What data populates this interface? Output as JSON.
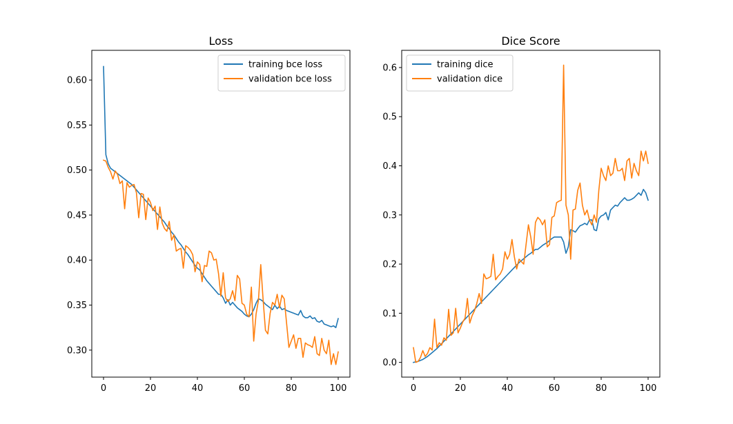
{
  "chart_data": [
    {
      "type": "line",
      "title": "Loss",
      "xlabel": "",
      "ylabel": "",
      "xlim": [
        -5,
        105
      ],
      "ylim": [
        0.27,
        0.633
      ],
      "xticks": [
        0,
        20,
        40,
        60,
        80,
        100
      ],
      "yticks": [
        0.3,
        0.35,
        0.4,
        0.45,
        0.5,
        0.55,
        0.6
      ],
      "ytick_labels": [
        "0.30",
        "0.35",
        "0.40",
        "0.45",
        "0.50",
        "0.55",
        "0.60"
      ],
      "legend": "top-right",
      "grid": false,
      "series": [
        {
          "name": "training bce loss",
          "color": "#1f77b4",
          "x": [
            0,
            1,
            2,
            3,
            4,
            5,
            6,
            7,
            8,
            9,
            10,
            11,
            12,
            13,
            14,
            15,
            16,
            17,
            18,
            19,
            20,
            21,
            22,
            23,
            24,
            25,
            26,
            27,
            28,
            29,
            30,
            31,
            32,
            33,
            34,
            35,
            36,
            37,
            38,
            39,
            40,
            41,
            42,
            43,
            44,
            45,
            46,
            47,
            48,
            49,
            50,
            51,
            52,
            53,
            54,
            55,
            56,
            57,
            58,
            59,
            60,
            61,
            62,
            63,
            64,
            65,
            66,
            67,
            68,
            69,
            70,
            71,
            72,
            73,
            74,
            75,
            76,
            77,
            78,
            79,
            80,
            81,
            82,
            83,
            84,
            85,
            86,
            87,
            88,
            89,
            90,
            91,
            92,
            93,
            94,
            95,
            96,
            97,
            98,
            99,
            100
          ],
          "y": [
            0.615,
            0.517,
            0.507,
            0.502,
            0.5,
            0.498,
            0.496,
            0.494,
            0.492,
            0.49,
            0.488,
            0.486,
            0.484,
            0.481,
            0.478,
            0.475,
            0.472,
            0.469,
            0.466,
            0.463,
            0.46,
            0.457,
            0.454,
            0.451,
            0.448,
            0.445,
            0.442,
            0.438,
            0.435,
            0.431,
            0.428,
            0.424,
            0.42,
            0.417,
            0.413,
            0.409,
            0.406,
            0.402,
            0.398,
            0.394,
            0.391,
            0.389,
            0.385,
            0.381,
            0.377,
            0.374,
            0.371,
            0.368,
            0.365,
            0.362,
            0.362,
            0.358,
            0.352,
            0.356,
            0.35,
            0.353,
            0.35,
            0.347,
            0.345,
            0.343,
            0.34,
            0.338,
            0.337,
            0.34,
            0.345,
            0.352,
            0.357,
            0.356,
            0.354,
            0.351,
            0.349,
            0.347,
            0.345,
            0.35,
            0.346,
            0.349,
            0.345,
            0.346,
            0.344,
            0.343,
            0.342,
            0.341,
            0.34,
            0.339,
            0.344,
            0.338,
            0.336,
            0.336,
            0.338,
            0.335,
            0.336,
            0.332,
            0.331,
            0.333,
            0.329,
            0.328,
            0.327,
            0.326,
            0.327,
            0.325,
            0.335
          ]
        },
        {
          "name": "validation bce loss",
          "color": "#ff7f0e",
          "x": [
            0,
            1,
            2,
            3,
            4,
            5,
            6,
            7,
            8,
            9,
            10,
            11,
            12,
            13,
            14,
            15,
            16,
            17,
            18,
            19,
            20,
            21,
            22,
            23,
            24,
            25,
            26,
            27,
            28,
            29,
            30,
            31,
            32,
            33,
            34,
            35,
            36,
            37,
            38,
            39,
            40,
            41,
            42,
            43,
            44,
            45,
            46,
            47,
            48,
            49,
            50,
            51,
            52,
            53,
            54,
            55,
            56,
            57,
            58,
            59,
            60,
            61,
            62,
            63,
            64,
            65,
            66,
            67,
            68,
            69,
            70,
            71,
            72,
            73,
            74,
            75,
            76,
            77,
            78,
            79,
            80,
            81,
            82,
            83,
            84,
            85,
            86,
            87,
            88,
            89,
            90,
            91,
            92,
            93,
            94,
            95,
            96,
            97,
            98,
            99,
            100
          ],
          "y": [
            0.511,
            0.51,
            0.503,
            0.498,
            0.49,
            0.499,
            0.495,
            0.485,
            0.488,
            0.457,
            0.486,
            0.481,
            0.483,
            0.484,
            0.475,
            0.447,
            0.474,
            0.473,
            0.445,
            0.469,
            0.464,
            0.455,
            0.46,
            0.434,
            0.459,
            0.441,
            0.435,
            0.432,
            0.443,
            0.422,
            0.428,
            0.41,
            0.412,
            0.413,
            0.391,
            0.416,
            0.414,
            0.411,
            0.406,
            0.387,
            0.398,
            0.395,
            0.376,
            0.394,
            0.393,
            0.41,
            0.408,
            0.4,
            0.401,
            0.385,
            0.36,
            0.386,
            0.358,
            0.354,
            0.357,
            0.366,
            0.355,
            0.383,
            0.379,
            0.352,
            0.35,
            0.34,
            0.337,
            0.37,
            0.31,
            0.34,
            0.355,
            0.395,
            0.356,
            0.322,
            0.318,
            0.341,
            0.353,
            0.35,
            0.362,
            0.347,
            0.361,
            0.357,
            0.33,
            0.303,
            0.31,
            0.317,
            0.302,
            0.313,
            0.313,
            0.292,
            0.308,
            0.306,
            0.305,
            0.303,
            0.315,
            0.296,
            0.294,
            0.313,
            0.3,
            0.296,
            0.311,
            0.284,
            0.296,
            0.284,
            0.298
          ]
        }
      ]
    },
    {
      "type": "line",
      "title": "Dice Score",
      "xlabel": "",
      "ylabel": "",
      "xlim": [
        -5,
        105
      ],
      "ylim": [
        -0.03,
        0.635
      ],
      "xticks": [
        0,
        20,
        40,
        60,
        80,
        100
      ],
      "yticks": [
        0.0,
        0.1,
        0.2,
        0.3,
        0.4,
        0.5,
        0.6
      ],
      "ytick_labels": [
        "0.0",
        "0.1",
        "0.2",
        "0.3",
        "0.4",
        "0.5",
        "0.6"
      ],
      "legend": "top-left",
      "grid": false,
      "series": [
        {
          "name": "training dice",
          "color": "#1f77b4",
          "x": [
            0,
            1,
            2,
            3,
            4,
            5,
            6,
            7,
            8,
            9,
            10,
            11,
            12,
            13,
            14,
            15,
            16,
            17,
            18,
            19,
            20,
            21,
            22,
            23,
            24,
            25,
            26,
            27,
            28,
            29,
            30,
            31,
            32,
            33,
            34,
            35,
            36,
            37,
            38,
            39,
            40,
            41,
            42,
            43,
            44,
            45,
            46,
            47,
            48,
            49,
            50,
            51,
            52,
            53,
            54,
            55,
            56,
            57,
            58,
            59,
            60,
            61,
            62,
            63,
            64,
            65,
            66,
            67,
            68,
            69,
            70,
            71,
            72,
            73,
            74,
            75,
            76,
            77,
            78,
            79,
            80,
            81,
            82,
            83,
            84,
            85,
            86,
            87,
            88,
            89,
            90,
            91,
            92,
            93,
            94,
            95,
            96,
            97,
            98,
            99,
            100
          ],
          "y": [
            0.0,
            0.001,
            0.002,
            0.004,
            0.006,
            0.009,
            0.012,
            0.016,
            0.02,
            0.024,
            0.028,
            0.033,
            0.038,
            0.043,
            0.048,
            0.053,
            0.058,
            0.063,
            0.068,
            0.073,
            0.078,
            0.083,
            0.088,
            0.093,
            0.098,
            0.103,
            0.108,
            0.113,
            0.118,
            0.123,
            0.128,
            0.133,
            0.138,
            0.143,
            0.148,
            0.153,
            0.158,
            0.163,
            0.168,
            0.173,
            0.178,
            0.183,
            0.188,
            0.193,
            0.198,
            0.203,
            0.207,
            0.211,
            0.215,
            0.219,
            0.222,
            0.226,
            0.23,
            0.23,
            0.234,
            0.238,
            0.241,
            0.244,
            0.248,
            0.252,
            0.255,
            0.255,
            0.255,
            0.255,
            0.245,
            0.222,
            0.235,
            0.27,
            0.268,
            0.265,
            0.272,
            0.278,
            0.28,
            0.283,
            0.28,
            0.29,
            0.29,
            0.27,
            0.268,
            0.292,
            0.298,
            0.3,
            0.305,
            0.29,
            0.31,
            0.315,
            0.32,
            0.318,
            0.325,
            0.33,
            0.335,
            0.33,
            0.33,
            0.332,
            0.335,
            0.34,
            0.345,
            0.34,
            0.352,
            0.345,
            0.33
          ]
        },
        {
          "name": "validation dice",
          "color": "#ff7f0e",
          "x": [
            0,
            1,
            2,
            3,
            4,
            5,
            6,
            7,
            8,
            9,
            10,
            11,
            12,
            13,
            14,
            15,
            16,
            17,
            18,
            19,
            20,
            21,
            22,
            23,
            24,
            25,
            26,
            27,
            28,
            29,
            30,
            31,
            32,
            33,
            34,
            35,
            36,
            37,
            38,
            39,
            40,
            41,
            42,
            43,
            44,
            45,
            46,
            47,
            48,
            49,
            50,
            51,
            52,
            53,
            54,
            55,
            56,
            57,
            58,
            59,
            60,
            61,
            62,
            63,
            64,
            65,
            66,
            67,
            68,
            69,
            70,
            71,
            72,
            73,
            74,
            75,
            76,
            77,
            78,
            79,
            80,
            81,
            82,
            83,
            84,
            85,
            86,
            87,
            88,
            89,
            90,
            91,
            92,
            93,
            94,
            95,
            96,
            97,
            98,
            99,
            100
          ],
          "y": [
            0.03,
            0.0,
            0.002,
            0.01,
            0.024,
            0.012,
            0.018,
            0.03,
            0.025,
            0.088,
            0.03,
            0.04,
            0.035,
            0.05,
            0.045,
            0.108,
            0.055,
            0.06,
            0.11,
            0.06,
            0.07,
            0.082,
            0.09,
            0.13,
            0.08,
            0.095,
            0.105,
            0.12,
            0.14,
            0.12,
            0.18,
            0.17,
            0.172,
            0.175,
            0.22,
            0.168,
            0.175,
            0.18,
            0.19,
            0.225,
            0.21,
            0.22,
            0.25,
            0.215,
            0.19,
            0.21,
            0.205,
            0.2,
            0.24,
            0.28,
            0.255,
            0.22,
            0.285,
            0.295,
            0.29,
            0.28,
            0.29,
            0.235,
            0.24,
            0.295,
            0.298,
            0.325,
            0.328,
            0.33,
            0.605,
            0.32,
            0.3,
            0.21,
            0.31,
            0.312,
            0.35,
            0.365,
            0.32,
            0.3,
            0.31,
            0.29,
            0.28,
            0.3,
            0.285,
            0.35,
            0.395,
            0.38,
            0.37,
            0.4,
            0.38,
            0.385,
            0.415,
            0.39,
            0.39,
            0.395,
            0.37,
            0.41,
            0.415,
            0.375,
            0.405,
            0.39,
            0.38,
            0.43,
            0.41,
            0.43,
            0.405
          ]
        }
      ]
    }
  ]
}
